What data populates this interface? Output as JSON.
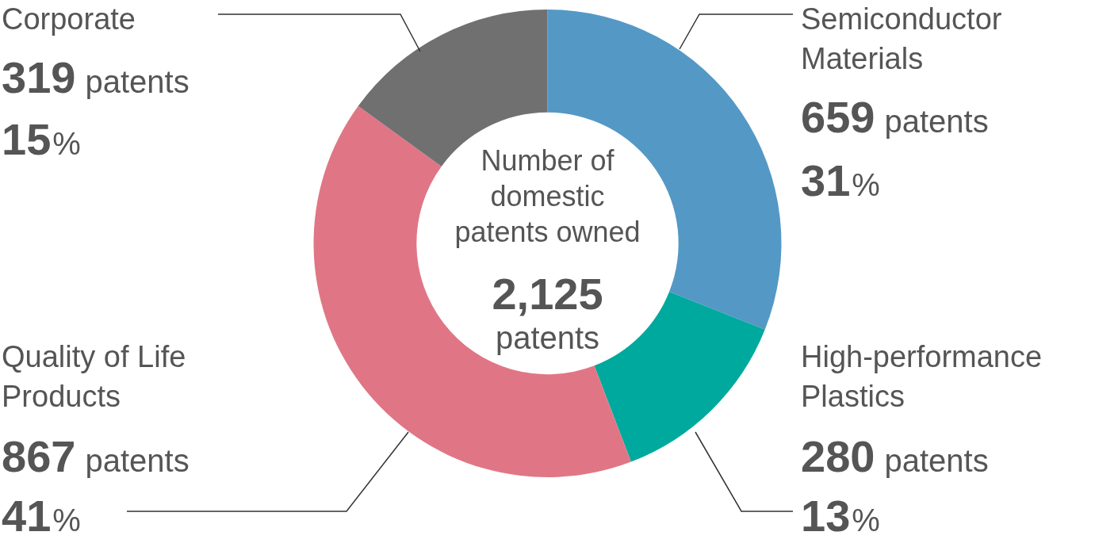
{
  "chart_data": {
    "type": "doughnut",
    "center_text": [
      "Number of",
      "domestic",
      "patents owned"
    ],
    "total": 2125,
    "total_unit": "patents",
    "categories": [
      "Semiconductor Materials",
      "High-performance Plastics",
      "Quality of Life Products",
      "Corporate"
    ],
    "values": [
      659,
      280,
      867,
      319
    ],
    "value_unit": "patents",
    "percentages": [
      31,
      13,
      41,
      15
    ],
    "percent_sign": "%",
    "colors": [
      "#5498c6",
      "#00a99d",
      "#e07685",
      "#707070"
    ],
    "legend": false,
    "data_labels": true
  }
}
